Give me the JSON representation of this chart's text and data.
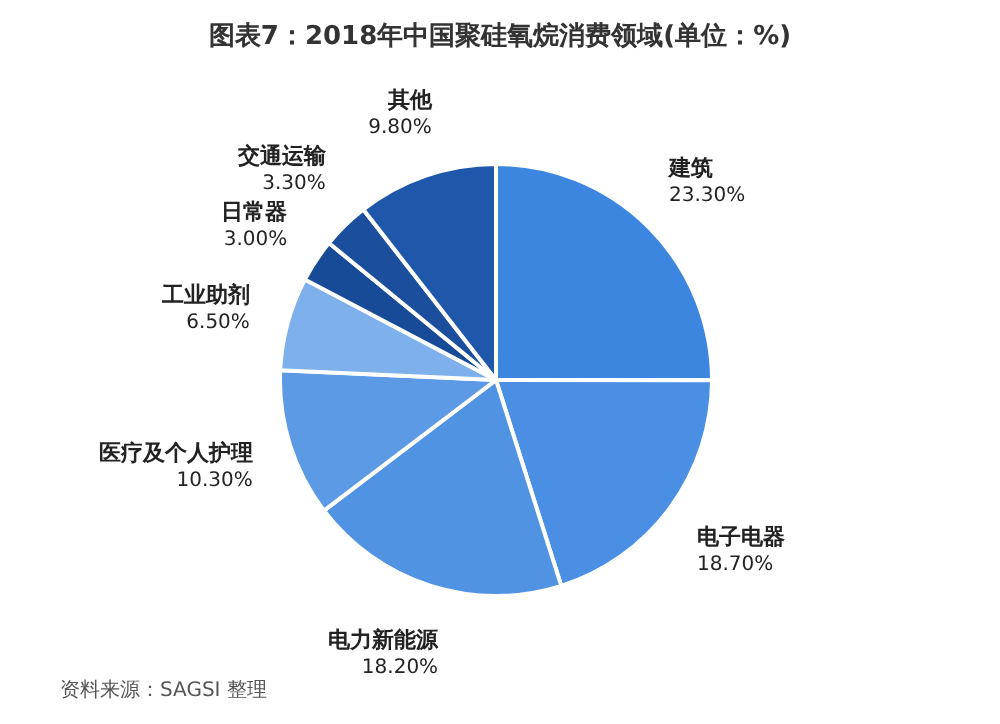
{
  "chart_data": {
    "type": "pie",
    "title": "图表7：2018年中国聚硅氧烷消费领域(单位：%)",
    "categories": [
      "建筑",
      "电子电器",
      "电力新能源",
      "医疗及个人护理",
      "工业助剂",
      "日常器",
      "交通运输",
      "其他"
    ],
    "values": [
      23.3,
      18.7,
      18.2,
      10.3,
      6.5,
      3.0,
      3.3,
      9.8
    ],
    "colors": [
      "#3d86df",
      "#4a8fe3",
      "#5193e3",
      "#5c9ae5",
      "#7eb0ec",
      "#174a97",
      "#1b4f9e",
      "#1f57ab"
    ],
    "value_labels": [
      "23.30%",
      "18.70%",
      "18.20%",
      "10.30%",
      "6.50%",
      "3.00%",
      "3.30%",
      "9.80%"
    ],
    "annotations": [
      "资料来源：SAGSI 整理"
    ]
  }
}
